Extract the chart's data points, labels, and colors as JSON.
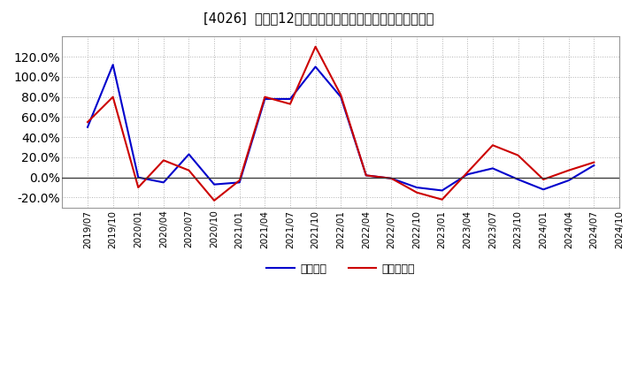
{
  "title": "[4026]  利益だ12か月移動合計の対前年同期増減率の推移",
  "x_labels": [
    "2019/07",
    "2019/10",
    "2020/01",
    "2020/04",
    "2020/07",
    "2020/10",
    "2021/01",
    "2021/04",
    "2021/07",
    "2021/10",
    "2022/01",
    "2022/04",
    "2022/07",
    "2022/10",
    "2023/01",
    "2023/04",
    "2023/07",
    "2023/10",
    "2024/01",
    "2024/04",
    "2024/07",
    "2024/10"
  ],
  "keijo_rieki": [
    50,
    112,
    0,
    -5,
    23,
    -7,
    -5,
    78,
    78,
    110,
    80,
    2,
    -1,
    -10,
    -13,
    3,
    9,
    -2,
    -12,
    -3,
    12,
    null
  ],
  "touki_junrieki": [
    55,
    80,
    -10,
    17,
    7,
    -23,
    -3,
    80,
    73,
    130,
    82,
    2,
    -1,
    -15,
    -22,
    5,
    32,
    22,
    -2,
    7,
    15,
    null
  ],
  "keijo_color": "#0000cc",
  "touki_color": "#cc0000",
  "ylim": [
    -30,
    140
  ],
  "yticks": [
    -20,
    0,
    20,
    40,
    60,
    80,
    100,
    120
  ],
  "bg_color": "#ffffff",
  "plot_bg_color": "#ffffff",
  "grid_color": "#aaaaaa",
  "legend_label_keijo": "経常利益",
  "legend_label_touki": "当期純利益"
}
